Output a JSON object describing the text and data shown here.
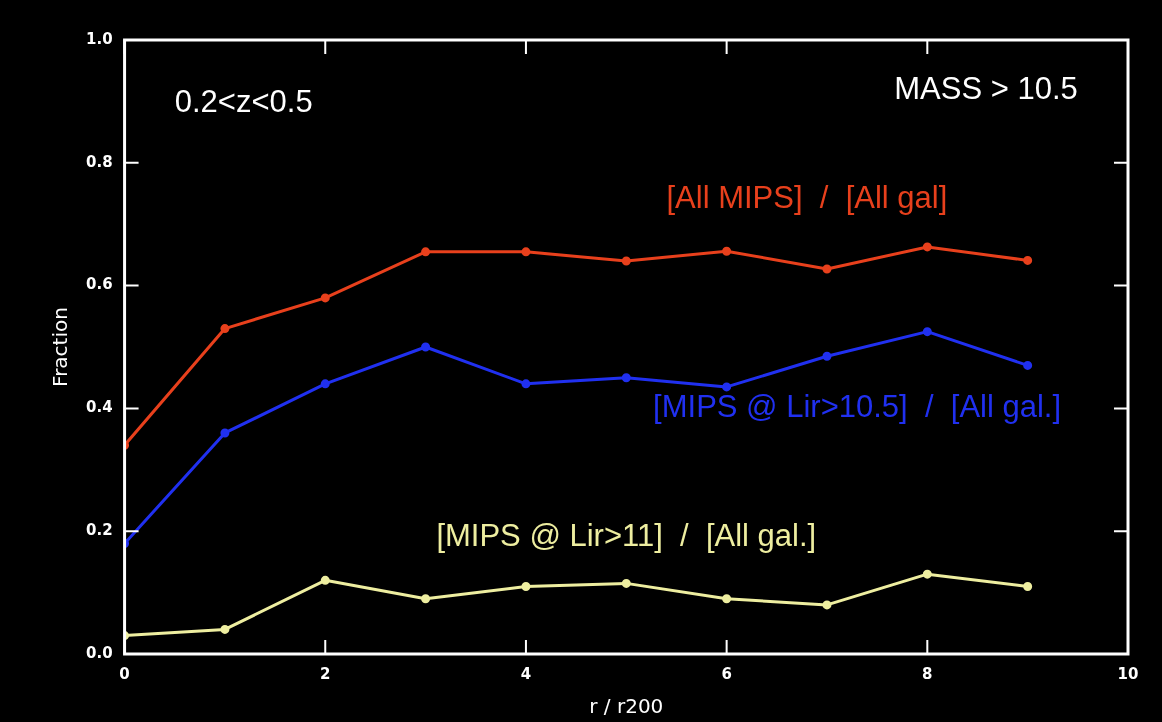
{
  "chart_data": {
    "type": "line",
    "xlabel": "r / r200",
    "ylabel": "Fraction",
    "x": [
      0,
      1,
      2,
      3,
      4,
      5,
      6,
      7,
      8,
      9
    ],
    "xlim": [
      0,
      10
    ],
    "xticks": [
      0,
      2,
      4,
      6,
      8,
      10
    ],
    "ylim": [
      0,
      1
    ],
    "yticks": [
      {
        "value": 0,
        "label": "0.0"
      },
      {
        "value": 0.2,
        "label": "0.2"
      },
      {
        "value": 0.4,
        "label": "0.4"
      },
      {
        "value": 0.6,
        "label": "0.6"
      },
      {
        "value": 0.8,
        "label": "0.8"
      },
      {
        "value": 1,
        "label": "1.0"
      }
    ],
    "grid": false,
    "legend": false,
    "marker": "circle",
    "line_style": "solid",
    "series": [
      {
        "name": "[All MIPS]  /  [All gal]",
        "color": "#e8401c",
        "values": [
          0.34,
          0.53,
          0.58,
          0.655,
          0.655,
          0.64,
          0.656,
          0.627,
          0.663,
          0.641
        ]
      },
      {
        "name": "[MIPS @ Lir>10.5]  /  [All gal.]",
        "color": "#2030f0",
        "values": [
          0.18,
          0.36,
          0.44,
          0.5,
          0.44,
          0.45,
          0.435,
          0.485,
          0.525,
          0.47
        ]
      },
      {
        "name": "[MIPS @ Lir>11]  /  [All gal.]",
        "color": "#eeeea0",
        "values": [
          0.03,
          0.04,
          0.12,
          0.09,
          0.11,
          0.115,
          0.09,
          0.08,
          0.13,
          0.11
        ]
      }
    ],
    "annotations": [
      "0.2<z<0.5",
      "MASS > 10.5"
    ]
  }
}
